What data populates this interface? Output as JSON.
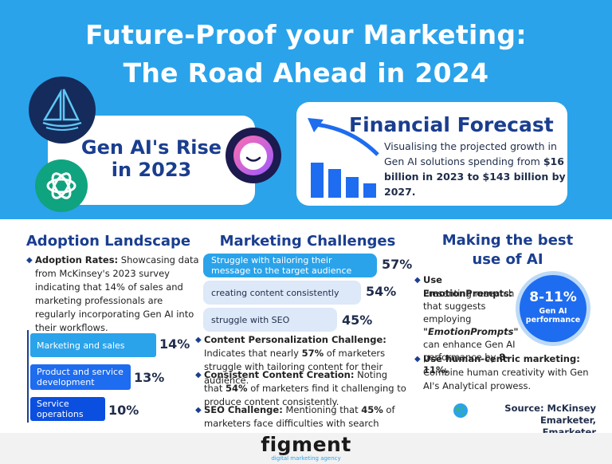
{
  "header": {
    "title_line1": "Future-Proof your Marketing:",
    "title_line2": "The Road Ahead in 2024"
  },
  "rise_card": {
    "line1": "Gen AI's Rise",
    "line2": "in 2023"
  },
  "financial": {
    "title": "Financial Forecast",
    "desc_prefix": "Visualising the projected growth in Gen AI solutions spending from ",
    "desc_bold": "$16 billion in 2023 to $143 billion by 2027."
  },
  "adoption": {
    "heading": "Adoption Landscape",
    "rates_label": "Adoption Rates:",
    "rates_text": " Showcasing data from McKinsey's 2023 survey indicating that 14% of sales and marketing professionals are regularly incorporating Gen AI into their workflows.",
    "bars": [
      {
        "label": "Marketing and sales",
        "value": "14%",
        "share": 14
      },
      {
        "label": "Product and service development",
        "value": "13%",
        "share": 13
      },
      {
        "label": "Service operations",
        "value": "10%",
        "share": 10
      }
    ]
  },
  "challenges": {
    "heading": "Marketing Challenges",
    "bars": [
      {
        "label": "Struggle with tailoring their message to the target audience",
        "value": "57%",
        "share": 57
      },
      {
        "label": "creating content consistently",
        "value": "54%",
        "share": 54
      },
      {
        "label": "struggle with SEO",
        "value": "45%",
        "share": 45
      }
    ],
    "items": [
      {
        "label": "Content Personalization Challenge:",
        "pre": " Indicates that nearly ",
        "bold": "57%",
        "post": " of marketers struggle with tailoring content for their audience."
      },
      {
        "label": "Consistent Content Creation:",
        "pre": " Noting that ",
        "bold": "54%",
        "post": " of marketers find it challenging to produce content consistently."
      },
      {
        "label": "SEO Challenge:",
        "pre": " Mentioning that ",
        "bold": "45%",
        "post": " of marketers face difficulties with search engine optimization."
      }
    ]
  },
  "best_use": {
    "heading_line1": "Making the best",
    "heading_line2": "use of AI",
    "badge_value": "8-11%",
    "badge_label1": "Gen AI",
    "badge_label2": "performance",
    "emotion_label": "Use EmotionPrompts:",
    "emotion_text1": "Presenting research that suggests employing ",
    "emotion_quote": "\"EmotionPrompts\"",
    "emotion_text2": " can enhance Gen AI performance by ",
    "emotion_bold": "8-11%.",
    "human_label": "Use human-centric marketing:",
    "human_text": " Combine human creativity with Gen AI's Analytical prowess."
  },
  "source": {
    "line1": "Source: McKinsey Emarketer,",
    "line2": "Emarketer"
  },
  "brand": {
    "name": "figment",
    "tagline": "digital marketing agency"
  },
  "colors": {
    "sky": "#2aa3ea",
    "navy": "#1a3e8f",
    "bright_blue": "#1e6cf0",
    "light_blue": "#dde8f8"
  }
}
